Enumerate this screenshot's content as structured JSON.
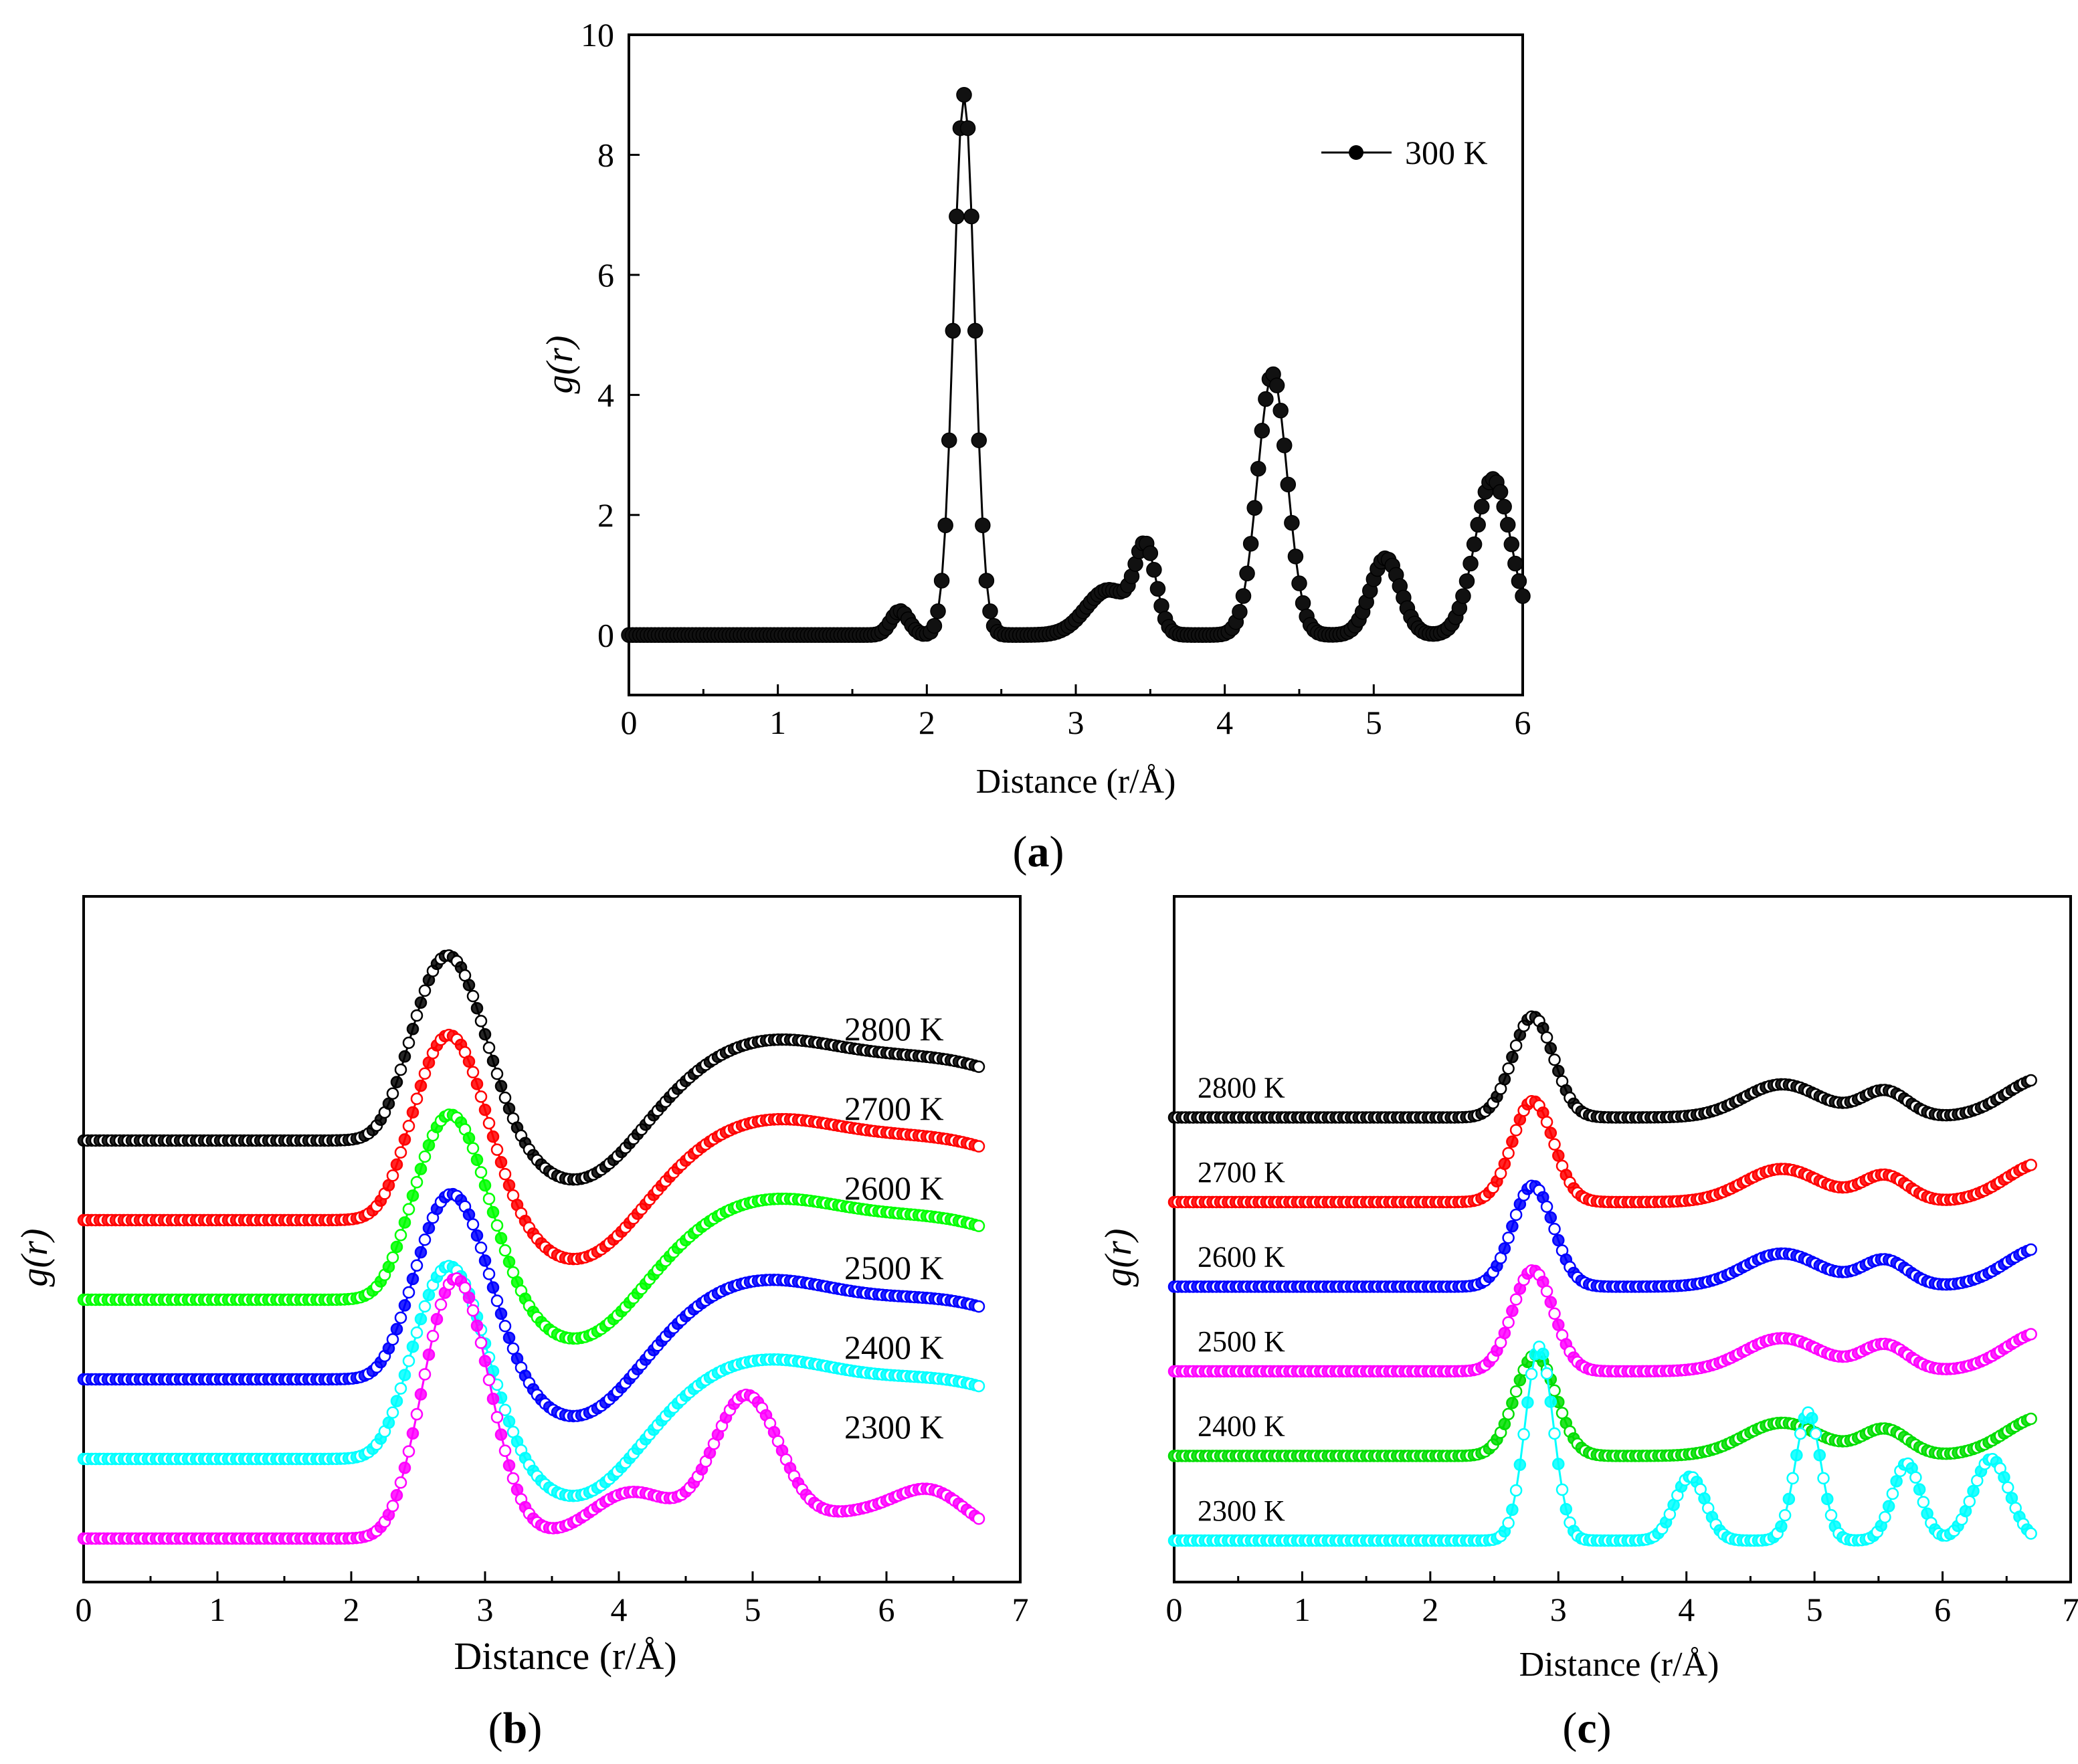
{
  "chart_data": [
    {
      "panel": "(a)",
      "panel_open": "(",
      "panel_letter": "a",
      "panel_close": ")",
      "type": "line",
      "xlabel": "Distance (r/Å)",
      "ylabel": "g(r)",
      "xlim": [
        0,
        6
      ],
      "ylim": [
        -1,
        10
      ],
      "xticks": [
        "0",
        "1",
        "2",
        "3",
        "4",
        "5",
        "6"
      ],
      "yticks": [
        "0",
        "2",
        "4",
        "6",
        "8",
        "10"
      ],
      "legend": "300 K",
      "legend_position": "top-right",
      "series": [
        {
          "name": "300 K",
          "color": "#000000",
          "peaks": [
            {
              "center": 1.82,
              "height": 0.4,
              "width": 0.06
            },
            {
              "center": 2.25,
              "height": 9.0,
              "width": 0.07
            },
            {
              "center": 3.22,
              "height": 0.75,
              "width": 0.15
            },
            {
              "center": 3.47,
              "height": 1.35,
              "width": 0.07
            },
            {
              "center": 4.32,
              "height": 4.35,
              "width": 0.1
            },
            {
              "center": 5.08,
              "height": 1.28,
              "width": 0.1
            },
            {
              "center": 5.8,
              "height": 2.6,
              "width": 0.12
            }
          ]
        }
      ]
    },
    {
      "panel": "(b)",
      "panel_open": "(",
      "panel_letter": "b",
      "panel_close": ")",
      "type": "line",
      "xlabel": "Distance (r/Å)",
      "ylabel": "g(r)",
      "xlim": [
        0,
        7
      ],
      "xticks": [
        "0",
        "1",
        "2",
        "3",
        "4",
        "5",
        "6",
        "7"
      ],
      "series": [
        {
          "name": "2800 K",
          "color": "#000000",
          "offset": 5,
          "peaks": [
            {
              "center": 2.72,
              "height": 2.45,
              "width": 0.28
            },
            {
              "center": 3.75,
              "height": -0.7,
              "width": 0.4
            },
            {
              "center": 5.05,
              "height": 1.2,
              "width": 0.7
            },
            {
              "center": 6.55,
              "height": 0.9,
              "width": 0.7
            }
          ]
        },
        {
          "name": "2700 K",
          "color": "#ff0000",
          "offset": 4,
          "peaks": [
            {
              "center": 2.73,
              "height": 2.45,
              "width": 0.28
            },
            {
              "center": 3.75,
              "height": -0.7,
              "width": 0.4
            },
            {
              "center": 5.05,
              "height": 1.2,
              "width": 0.7
            },
            {
              "center": 6.55,
              "height": 0.9,
              "width": 0.7
            }
          ]
        },
        {
          "name": "2600 K",
          "color": "#00ff00",
          "offset": 3,
          "peaks": [
            {
              "center": 2.74,
              "height": 2.45,
              "width": 0.28
            },
            {
              "center": 3.75,
              "height": -0.7,
              "width": 0.4
            },
            {
              "center": 5.05,
              "height": 1.2,
              "width": 0.7
            },
            {
              "center": 6.55,
              "height": 0.9,
              "width": 0.7
            }
          ]
        },
        {
          "name": "2500 K",
          "color": "#0000ff",
          "offset": 2,
          "peaks": [
            {
              "center": 2.75,
              "height": 2.45,
              "width": 0.28
            },
            {
              "center": 3.75,
              "height": -0.7,
              "width": 0.4
            },
            {
              "center": 5.0,
              "height": 1.2,
              "width": 0.7
            },
            {
              "center": 6.55,
              "height": 0.9,
              "width": 0.7
            }
          ]
        },
        {
          "name": "2400 K",
          "color": "#00ffff",
          "offset": 1,
          "peaks": [
            {
              "center": 2.73,
              "height": 2.55,
              "width": 0.28
            },
            {
              "center": 3.75,
              "height": -0.7,
              "width": 0.4
            },
            {
              "center": 5.0,
              "height": 1.2,
              "width": 0.7
            },
            {
              "center": 6.55,
              "height": 0.9,
              "width": 0.7
            }
          ]
        },
        {
          "name": "2300 K",
          "color": "#ff00ff",
          "offset": 0,
          "peaks": [
            {
              "center": 2.78,
              "height": 3.4,
              "width": 0.25
            },
            {
              "center": 4.1,
              "height": 0.6,
              "width": 0.3
            },
            {
              "center": 4.95,
              "height": 1.8,
              "width": 0.25
            },
            {
              "center": 6.35,
              "height": 0.4,
              "width": 0.25
            },
            {
              "center": 5.9,
              "height": 0.35,
              "width": 0.5
            }
          ]
        }
      ]
    },
    {
      "panel": "(c)",
      "panel_open": "(",
      "panel_letter": "c",
      "panel_close": ")",
      "type": "line",
      "xlabel": "Distance (r/Å)",
      "ylabel": "g(r)",
      "xlim": [
        0,
        7
      ],
      "xticks": [
        "0",
        "1",
        "2",
        "3",
        "4",
        "5",
        "6",
        "7"
      ],
      "series": [
        {
          "name": "2800 K",
          "color": "#000000",
          "offset": 5,
          "peaks": [
            {
              "center": 2.8,
              "height": 2.3,
              "width": 0.16
            },
            {
              "center": 3.35,
              "height": 0.0,
              "width": 0.3
            },
            {
              "center": 4.75,
              "height": 0.75,
              "width": 0.3
            },
            {
              "center": 5.55,
              "height": 0.6,
              "width": 0.18
            },
            {
              "center": 6.8,
              "height": 0.9,
              "width": 0.3
            }
          ]
        },
        {
          "name": "2700 K",
          "color": "#ff0000",
          "offset": 4,
          "peaks": [
            {
              "center": 2.8,
              "height": 2.3,
              "width": 0.16
            },
            {
              "center": 4.75,
              "height": 0.75,
              "width": 0.3
            },
            {
              "center": 5.55,
              "height": 0.6,
              "width": 0.18
            },
            {
              "center": 6.8,
              "height": 0.9,
              "width": 0.3
            }
          ]
        },
        {
          "name": "2600 K",
          "color": "#0000ff",
          "offset": 3,
          "peaks": [
            {
              "center": 2.8,
              "height": 2.3,
              "width": 0.16
            },
            {
              "center": 4.75,
              "height": 0.75,
              "width": 0.3
            },
            {
              "center": 5.55,
              "height": 0.6,
              "width": 0.18
            },
            {
              "center": 6.8,
              "height": 0.9,
              "width": 0.3
            }
          ]
        },
        {
          "name": "2500 K",
          "color": "#ff00ff",
          "offset": 2,
          "peaks": [
            {
              "center": 2.8,
              "height": 2.3,
              "width": 0.16
            },
            {
              "center": 4.75,
              "height": 0.75,
              "width": 0.3
            },
            {
              "center": 5.55,
              "height": 0.6,
              "width": 0.18
            },
            {
              "center": 6.8,
              "height": 0.9,
              "width": 0.3
            }
          ]
        },
        {
          "name": "2400 K",
          "color": "#00dd00",
          "offset": 1,
          "peaks": [
            {
              "center": 2.82,
              "height": 2.3,
              "width": 0.16
            },
            {
              "center": 4.75,
              "height": 0.75,
              "width": 0.3
            },
            {
              "center": 5.55,
              "height": 0.6,
              "width": 0.18
            },
            {
              "center": 6.8,
              "height": 0.9,
              "width": 0.3
            }
          ]
        },
        {
          "name": "2300 K",
          "color": "#00ffff",
          "offset": 0,
          "peaks": [
            {
              "center": 2.85,
              "height": 4.4,
              "width": 0.11
            },
            {
              "center": 4.03,
              "height": 1.45,
              "width": 0.12
            },
            {
              "center": 4.95,
              "height": 2.9,
              "width": 0.1
            },
            {
              "center": 5.72,
              "height": 1.75,
              "width": 0.11
            },
            {
              "center": 6.38,
              "height": 1.85,
              "width": 0.14
            }
          ]
        }
      ]
    }
  ]
}
